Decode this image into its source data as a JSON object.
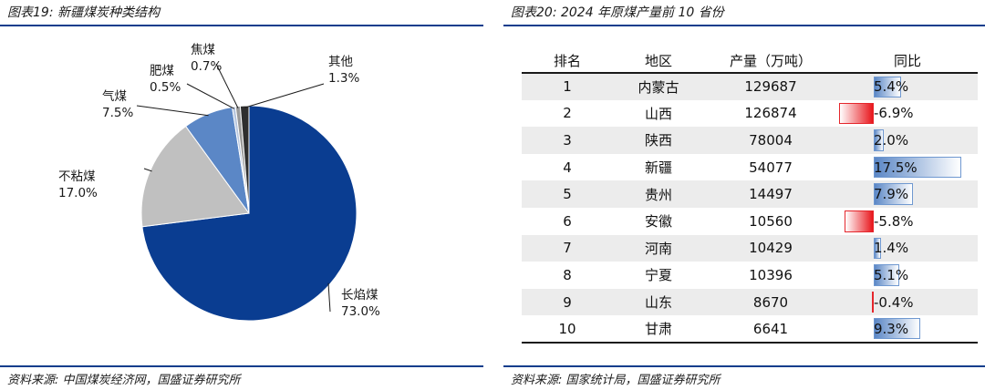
{
  "left_figure": {
    "title": "图表19:  新疆煤炭种类结构",
    "source": "资料来源:  中国煤炭经济网，国盛证券研究所"
  },
  "right_figure": {
    "title": "图表20:  2024 年原煤产量前 10 省份",
    "source": "资料来源:  国家统计局，国盛证券研究所"
  },
  "colors": {
    "rule": "#0d3d8c",
    "pie": [
      "#0a3d91",
      "#c0c0c0",
      "#5b87c6",
      "#b7c6de",
      "#9a9a9a",
      "#2e2e2e"
    ],
    "bar_positive": "#5b87c6",
    "bar_negative": "#e8161c"
  },
  "chart_data": [
    {
      "type": "pie",
      "title": "",
      "slices": [
        {
          "label": "长焰煤",
          "value": 73.0,
          "display": "73.0%"
        },
        {
          "label": "不粘煤",
          "value": 17.0,
          "display": "17.0%"
        },
        {
          "label": "气煤",
          "value": 7.5,
          "display": "7.5%"
        },
        {
          "label": "肥煤",
          "value": 0.5,
          "display": "0.5%"
        },
        {
          "label": "焦煤",
          "value": 0.7,
          "display": "0.7%"
        },
        {
          "label": "其他",
          "value": 1.3,
          "display": "1.3%"
        }
      ]
    },
    {
      "type": "table",
      "title": "",
      "columns": [
        "排名",
        "地区",
        "产量（万吨）",
        "同比"
      ],
      "rows": [
        {
          "rank": "1",
          "region": "内蒙古",
          "output": "129687",
          "yoy": 5.4,
          "yoy_text": "5.4%"
        },
        {
          "rank": "2",
          "region": "山西",
          "output": "126874",
          "yoy": -6.9,
          "yoy_text": "-6.9%"
        },
        {
          "rank": "3",
          "region": "陕西",
          "output": "78004",
          "yoy": 2.0,
          "yoy_text": "2.0%"
        },
        {
          "rank": "4",
          "region": "新疆",
          "output": "54077",
          "yoy": 17.5,
          "yoy_text": "17.5%"
        },
        {
          "rank": "5",
          "region": "贵州",
          "output": "14497",
          "yoy": 7.9,
          "yoy_text": "7.9%"
        },
        {
          "rank": "6",
          "region": "安徽",
          "output": "10560",
          "yoy": -5.8,
          "yoy_text": "-5.8%"
        },
        {
          "rank": "7",
          "region": "河南",
          "output": "10429",
          "yoy": 1.4,
          "yoy_text": "1.4%"
        },
        {
          "rank": "8",
          "region": "宁夏",
          "output": "10396",
          "yoy": 5.1,
          "yoy_text": "5.1%"
        },
        {
          "rank": "9",
          "region": "山东",
          "output": "8670",
          "yoy": -0.4,
          "yoy_text": "-0.4%"
        },
        {
          "rank": "10",
          "region": "甘肃",
          "output": "6641",
          "yoy": 9.3,
          "yoy_text": "9.3%"
        }
      ]
    }
  ]
}
